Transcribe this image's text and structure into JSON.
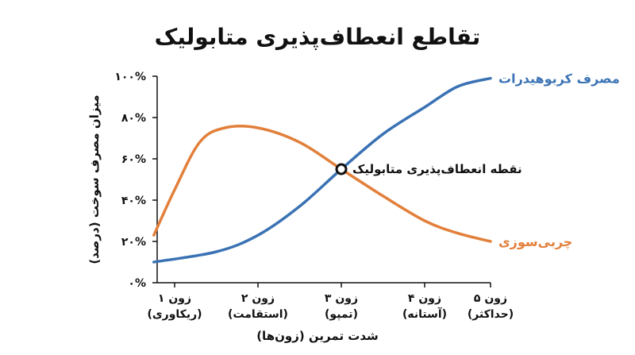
{
  "chart_data": {
    "type": "line",
    "title": "تقاطع انعطاف‌پذیری متابولیک",
    "xlabel": "شدت تمرین (زون‌ها)",
    "ylabel": "میزان مصرف سوخت (درصد)",
    "categories": [
      [
        "زون ۱",
        "(ریکاوری)"
      ],
      [
        "زون ۲",
        "(استقامت)"
      ],
      [
        "زون ۳",
        "(تمپو)"
      ],
      [
        "زون ۴",
        "(آستانه)"
      ],
      [
        "زون ۵",
        "(حداکثر)"
      ]
    ],
    "x_range": [
      0.75,
      5
    ],
    "ylim": [
      0,
      100
    ],
    "y_ticks": [
      {
        "value": 0,
        "label": "۰%"
      },
      {
        "value": 20,
        "label": "۲۰%"
      },
      {
        "value": 40,
        "label": "۴۰%"
      },
      {
        "value": 60,
        "label": "۶۰%"
      },
      {
        "value": 80,
        "label": "۸۰%"
      },
      {
        "value": 100,
        "label": "۱۰۰%"
      }
    ],
    "grid": false,
    "series": [
      {
        "name": "مصرف کربوهیدرات",
        "color": "#3a72b4",
        "points": [
          [
            0.75,
            10
          ],
          [
            1.5,
            15
          ],
          [
            2,
            23
          ],
          [
            2.5,
            37
          ],
          [
            3,
            55
          ],
          [
            3.5,
            72
          ],
          [
            4,
            85
          ],
          [
            4.5,
            95
          ],
          [
            5,
            99
          ]
        ]
      },
      {
        "name": "چربی‌سوزی",
        "color": "#e2803b",
        "points": [
          [
            0.75,
            23
          ],
          [
            1,
            45
          ],
          [
            1.3,
            68
          ],
          [
            1.6,
            75
          ],
          [
            2,
            75
          ],
          [
            2.5,
            68
          ],
          [
            3,
            55
          ],
          [
            3.5,
            42
          ],
          [
            4,
            30
          ],
          [
            4.5,
            24
          ],
          [
            5,
            20
          ]
        ]
      }
    ],
    "annotations": [
      {
        "text": "نقطه انعطاف‌پذیری متابولیک",
        "x": 3,
        "y": 55
      }
    ]
  }
}
